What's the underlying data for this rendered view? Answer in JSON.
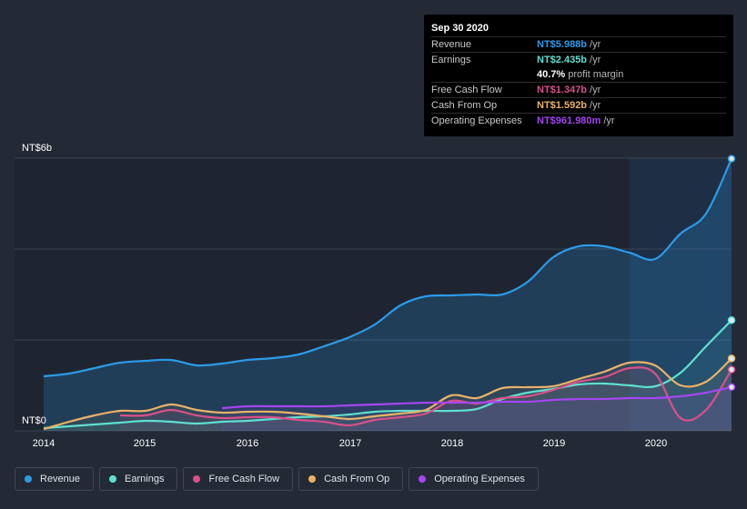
{
  "chart_data": {
    "type": "line",
    "y_axis": {
      "top_label": "NT$6b",
      "bottom_label": "NT$0",
      "ylim": [
        0,
        6
      ]
    },
    "x_axis": {
      "tick_labels": [
        "2014",
        "2015",
        "2016",
        "2017",
        "2018",
        "2019",
        "2020"
      ],
      "xlim": [
        2014.0,
        2020.75
      ]
    },
    "grid": true,
    "series": [
      {
        "name": "Revenue",
        "color": "#2b9be8",
        "fill": true,
        "points": [
          [
            2014.0,
            1.2
          ],
          [
            2014.25,
            1.26
          ],
          [
            2014.5,
            1.38
          ],
          [
            2014.75,
            1.5
          ],
          [
            2015.0,
            1.54
          ],
          [
            2015.25,
            1.56
          ],
          [
            2015.5,
            1.44
          ],
          [
            2015.75,
            1.48
          ],
          [
            2016.0,
            1.56
          ],
          [
            2016.25,
            1.6
          ],
          [
            2016.5,
            1.68
          ],
          [
            2016.75,
            1.86
          ],
          [
            2017.0,
            2.06
          ],
          [
            2017.25,
            2.34
          ],
          [
            2017.5,
            2.76
          ],
          [
            2017.75,
            2.96
          ],
          [
            2018.0,
            2.98
          ],
          [
            2018.25,
            3.0
          ],
          [
            2018.5,
            3.0
          ],
          [
            2018.75,
            3.28
          ],
          [
            2019.0,
            3.82
          ],
          [
            2019.25,
            4.06
          ],
          [
            2019.5,
            4.06
          ],
          [
            2019.75,
            3.92
          ],
          [
            2020.0,
            3.78
          ],
          [
            2020.25,
            4.34
          ],
          [
            2020.5,
            4.78
          ],
          [
            2020.75,
            5.988
          ]
        ]
      },
      {
        "name": "Earnings",
        "color": "#5fe0cf",
        "points": [
          [
            2014.0,
            0.06
          ],
          [
            2014.25,
            0.1
          ],
          [
            2014.5,
            0.14
          ],
          [
            2014.75,
            0.18
          ],
          [
            2015.0,
            0.22
          ],
          [
            2015.25,
            0.2
          ],
          [
            2015.5,
            0.16
          ],
          [
            2015.75,
            0.2
          ],
          [
            2016.0,
            0.22
          ],
          [
            2016.25,
            0.26
          ],
          [
            2016.5,
            0.3
          ],
          [
            2016.75,
            0.32
          ],
          [
            2017.0,
            0.36
          ],
          [
            2017.25,
            0.42
          ],
          [
            2017.5,
            0.44
          ],
          [
            2017.75,
            0.44
          ],
          [
            2018.0,
            0.44
          ],
          [
            2018.25,
            0.48
          ],
          [
            2018.5,
            0.7
          ],
          [
            2018.75,
            0.84
          ],
          [
            2019.0,
            0.92
          ],
          [
            2019.25,
            1.02
          ],
          [
            2019.5,
            1.04
          ],
          [
            2019.75,
            1.0
          ],
          [
            2020.0,
            0.98
          ],
          [
            2020.25,
            1.28
          ],
          [
            2020.5,
            1.86
          ],
          [
            2020.75,
            2.435
          ]
        ]
      },
      {
        "name": "Free Cash Flow",
        "color": "#d9508a",
        "points": [
          [
            2014.75,
            0.34
          ],
          [
            2015.0,
            0.34
          ],
          [
            2015.25,
            0.46
          ],
          [
            2015.5,
            0.34
          ],
          [
            2015.75,
            0.28
          ],
          [
            2016.0,
            0.3
          ],
          [
            2016.25,
            0.3
          ],
          [
            2016.5,
            0.24
          ],
          [
            2016.75,
            0.2
          ],
          [
            2017.0,
            0.12
          ],
          [
            2017.25,
            0.24
          ],
          [
            2017.5,
            0.3
          ],
          [
            2017.75,
            0.38
          ],
          [
            2018.0,
            0.66
          ],
          [
            2018.25,
            0.6
          ],
          [
            2018.5,
            0.72
          ],
          [
            2018.75,
            0.76
          ],
          [
            2019.0,
            0.9
          ],
          [
            2019.25,
            1.08
          ],
          [
            2019.5,
            1.18
          ],
          [
            2019.75,
            1.38
          ],
          [
            2020.0,
            1.26
          ],
          [
            2020.25,
            0.28
          ],
          [
            2020.5,
            0.46
          ],
          [
            2020.75,
            1.347
          ]
        ]
      },
      {
        "name": "Cash From Op",
        "color": "#e8b268",
        "points": [
          [
            2014.0,
            0.04
          ],
          [
            2014.25,
            0.2
          ],
          [
            2014.5,
            0.34
          ],
          [
            2014.75,
            0.44
          ],
          [
            2015.0,
            0.44
          ],
          [
            2015.25,
            0.58
          ],
          [
            2015.5,
            0.46
          ],
          [
            2015.75,
            0.4
          ],
          [
            2016.0,
            0.42
          ],
          [
            2016.25,
            0.42
          ],
          [
            2016.5,
            0.38
          ],
          [
            2016.75,
            0.32
          ],
          [
            2017.0,
            0.26
          ],
          [
            2017.25,
            0.32
          ],
          [
            2017.5,
            0.38
          ],
          [
            2017.75,
            0.46
          ],
          [
            2018.0,
            0.78
          ],
          [
            2018.25,
            0.72
          ],
          [
            2018.5,
            0.94
          ],
          [
            2018.75,
            0.96
          ],
          [
            2019.0,
            0.98
          ],
          [
            2019.25,
            1.14
          ],
          [
            2019.5,
            1.3
          ],
          [
            2019.75,
            1.5
          ],
          [
            2020.0,
            1.44
          ],
          [
            2020.25,
            1.0
          ],
          [
            2020.5,
            1.08
          ],
          [
            2020.75,
            1.592
          ]
        ]
      },
      {
        "name": "Operating Expenses",
        "color": "#a546f0",
        "points": [
          [
            2015.75,
            0.5
          ],
          [
            2016.0,
            0.54
          ],
          [
            2016.25,
            0.54
          ],
          [
            2016.5,
            0.54
          ],
          [
            2016.75,
            0.54
          ],
          [
            2017.0,
            0.56
          ],
          [
            2017.25,
            0.58
          ],
          [
            2017.5,
            0.6
          ],
          [
            2017.75,
            0.62
          ],
          [
            2018.0,
            0.62
          ],
          [
            2018.25,
            0.62
          ],
          [
            2018.5,
            0.64
          ],
          [
            2018.75,
            0.64
          ],
          [
            2019.0,
            0.68
          ],
          [
            2019.25,
            0.7
          ],
          [
            2019.5,
            0.7
          ],
          [
            2019.75,
            0.72
          ],
          [
            2020.0,
            0.72
          ],
          [
            2020.25,
            0.76
          ],
          [
            2020.5,
            0.84
          ],
          [
            2020.75,
            0.962
          ]
        ]
      }
    ]
  },
  "tooltip": {
    "date": "Sep 30 2020",
    "rows": [
      {
        "label": "Revenue",
        "value": "NT$5.988b",
        "unit": "/yr",
        "color": "#2b9be8"
      },
      {
        "label": "Earnings",
        "value": "NT$2.435b",
        "unit": "/yr",
        "color": "#5fe0cf"
      },
      {
        "label": "",
        "value": "40.7%",
        "unit": "profit margin",
        "color": "#ffffff"
      },
      {
        "label": "Free Cash Flow",
        "value": "NT$1.347b",
        "unit": "/yr",
        "color": "#d9508a"
      },
      {
        "label": "Cash From Op",
        "value": "NT$1.592b",
        "unit": "/yr",
        "color": "#e8b268"
      },
      {
        "label": "Operating Expenses",
        "value": "NT$961.980m",
        "unit": "/yr",
        "color": "#a546f0"
      }
    ]
  },
  "legend": [
    {
      "label": "Revenue",
      "color": "#2b9be8"
    },
    {
      "label": "Earnings",
      "color": "#5fe0cf"
    },
    {
      "label": "Free Cash Flow",
      "color": "#d9508a"
    },
    {
      "label": "Cash From Op",
      "color": "#e8b268"
    },
    {
      "label": "Operating Expenses",
      "color": "#a546f0"
    }
  ]
}
